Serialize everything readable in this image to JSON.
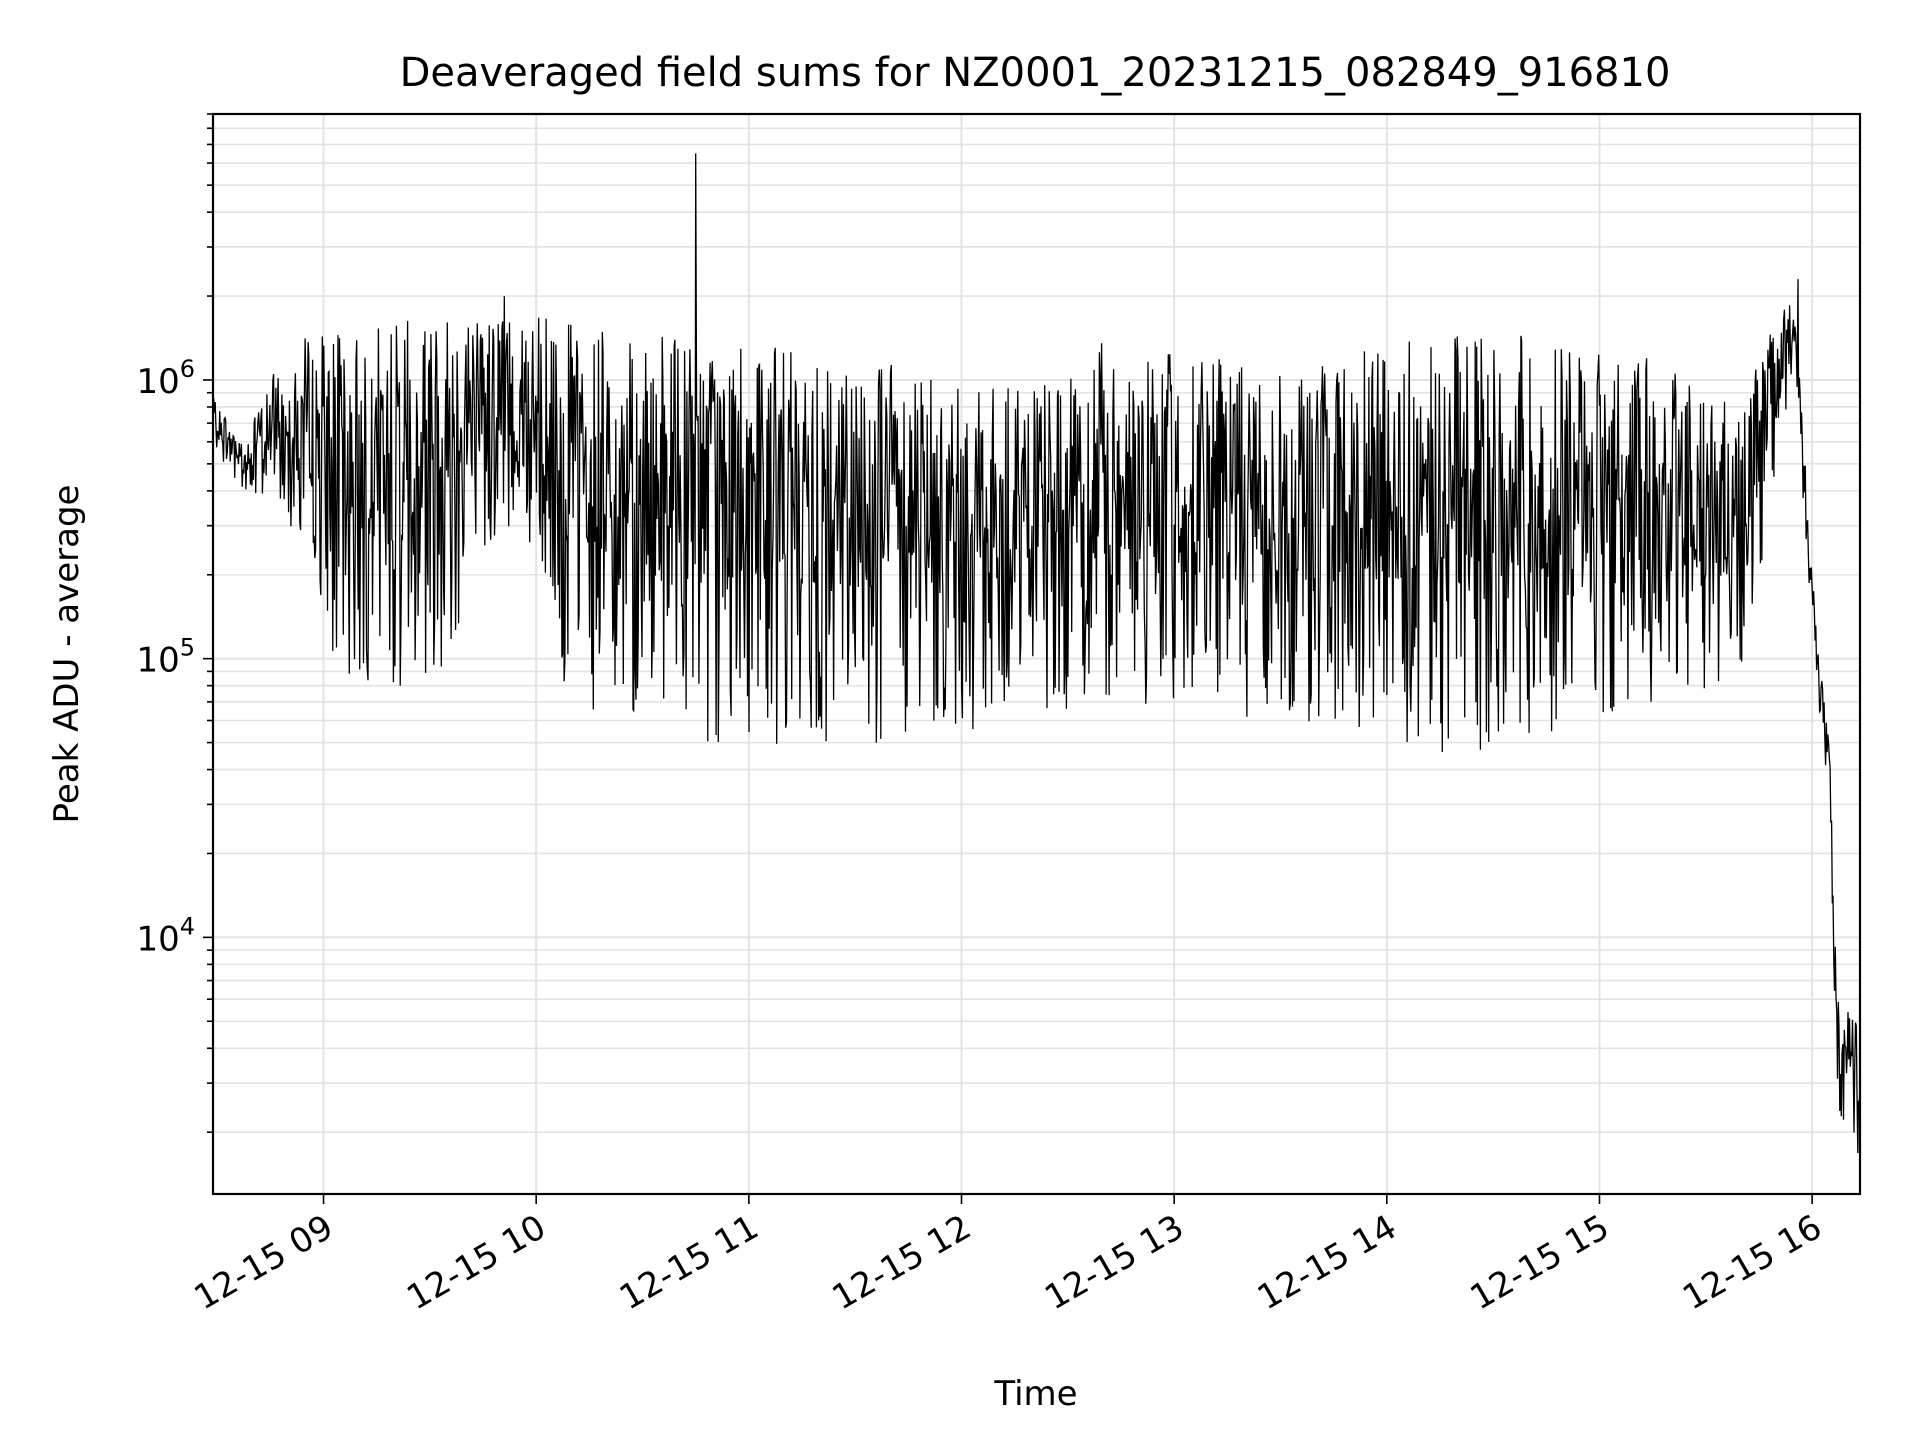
{
  "chart_data": {
    "type": "line",
    "title": "Deaveraged field sums for NZ0001_20231215_082849_916810",
    "xlabel": "Time",
    "ylabel": "Peak ADU - average",
    "yscale": "log",
    "grid": true,
    "xlim": [
      "2023-12-15 08:28:49",
      "2023-12-15 16:13:30"
    ],
    "ylim": [
      1200,
      9000000
    ],
    "x_ticks": [
      {
        "value": "2023-12-15 09:00",
        "label": "12-15 09"
      },
      {
        "value": "2023-12-15 10:00",
        "label": "12-15 10"
      },
      {
        "value": "2023-12-15 11:00",
        "label": "12-15 11"
      },
      {
        "value": "2023-12-15 12:00",
        "label": "12-15 12"
      },
      {
        "value": "2023-12-15 13:00",
        "label": "12-15 13"
      },
      {
        "value": "2023-12-15 14:00",
        "label": "12-15 14"
      },
      {
        "value": "2023-12-15 15:00",
        "label": "12-15 15"
      },
      {
        "value": "2023-12-15 16:00",
        "label": "12-15 16"
      }
    ],
    "y_ticks": [
      {
        "value": 10000,
        "base": "10",
        "exp": "4"
      },
      {
        "value": 100000,
        "base": "10",
        "exp": "5"
      },
      {
        "value": 1000000,
        "base": "10",
        "exp": "6"
      }
    ],
    "series_color": "#000000",
    "envelope": [
      {
        "t": "2023-12-15 08:28:49",
        "lo": 580000,
        "hi": 870000
      },
      {
        "t": "2023-12-15 08:38:00",
        "lo": 380000,
        "hi": 620000
      },
      {
        "t": "2023-12-15 08:50:00",
        "lo": 320000,
        "hi": 1400000
      },
      {
        "t": "2023-12-15 09:05:00",
        "lo": 85000,
        "hi": 1500000
      },
      {
        "t": "2023-12-15 09:30:00",
        "lo": 70000,
        "hi": 1700000
      },
      {
        "t": "2023-12-15 09:50:00",
        "lo": 300000,
        "hi": 1800000
      },
      {
        "t": "2023-12-15 10:10:00",
        "lo": 70000,
        "hi": 1600000
      },
      {
        "t": "2023-12-15 10:40:00",
        "lo": 48000,
        "hi": 1400000
      },
      {
        "t": "2023-12-15 11:20:00",
        "lo": 48000,
        "hi": 1300000
      },
      {
        "t": "2023-12-15 12:00:00",
        "lo": 52000,
        "hi": 1100000
      },
      {
        "t": "2023-12-15 12:20:00",
        "lo": 60000,
        "hi": 900000
      },
      {
        "t": "2023-12-15 12:40:00",
        "lo": 65000,
        "hi": 1400000
      },
      {
        "t": "2023-12-15 13:30:00",
        "lo": 60000,
        "hi": 1100000
      },
      {
        "t": "2023-12-15 14:20:00",
        "lo": 45000,
        "hi": 1500000
      },
      {
        "t": "2023-12-15 15:00:00",
        "lo": 60000,
        "hi": 1400000
      },
      {
        "t": "2023-12-15 15:40:00",
        "lo": 80000,
        "hi": 900000
      },
      {
        "t": "2023-12-15 15:55:00",
        "lo": 1100000,
        "hi": 2200000
      },
      {
        "t": "2023-12-15 16:00:00",
        "lo": 120000,
        "hi": 200000
      },
      {
        "t": "2023-12-15 16:05:00",
        "lo": 25000,
        "hi": 45000
      },
      {
        "t": "2023-12-15 16:07:00",
        "lo": 2300,
        "hi": 6000
      },
      {
        "t": "2023-12-15 16:13:30",
        "lo": 1500,
        "hi": 5000
      }
    ],
    "peaks": [
      {
        "t": "2023-12-15 10:45:00",
        "value": 6500000
      },
      {
        "t": "2023-12-15 15:56:00",
        "value": 2300000
      },
      {
        "t": "2023-12-15 09:51:00",
        "value": 2000000
      }
    ]
  }
}
